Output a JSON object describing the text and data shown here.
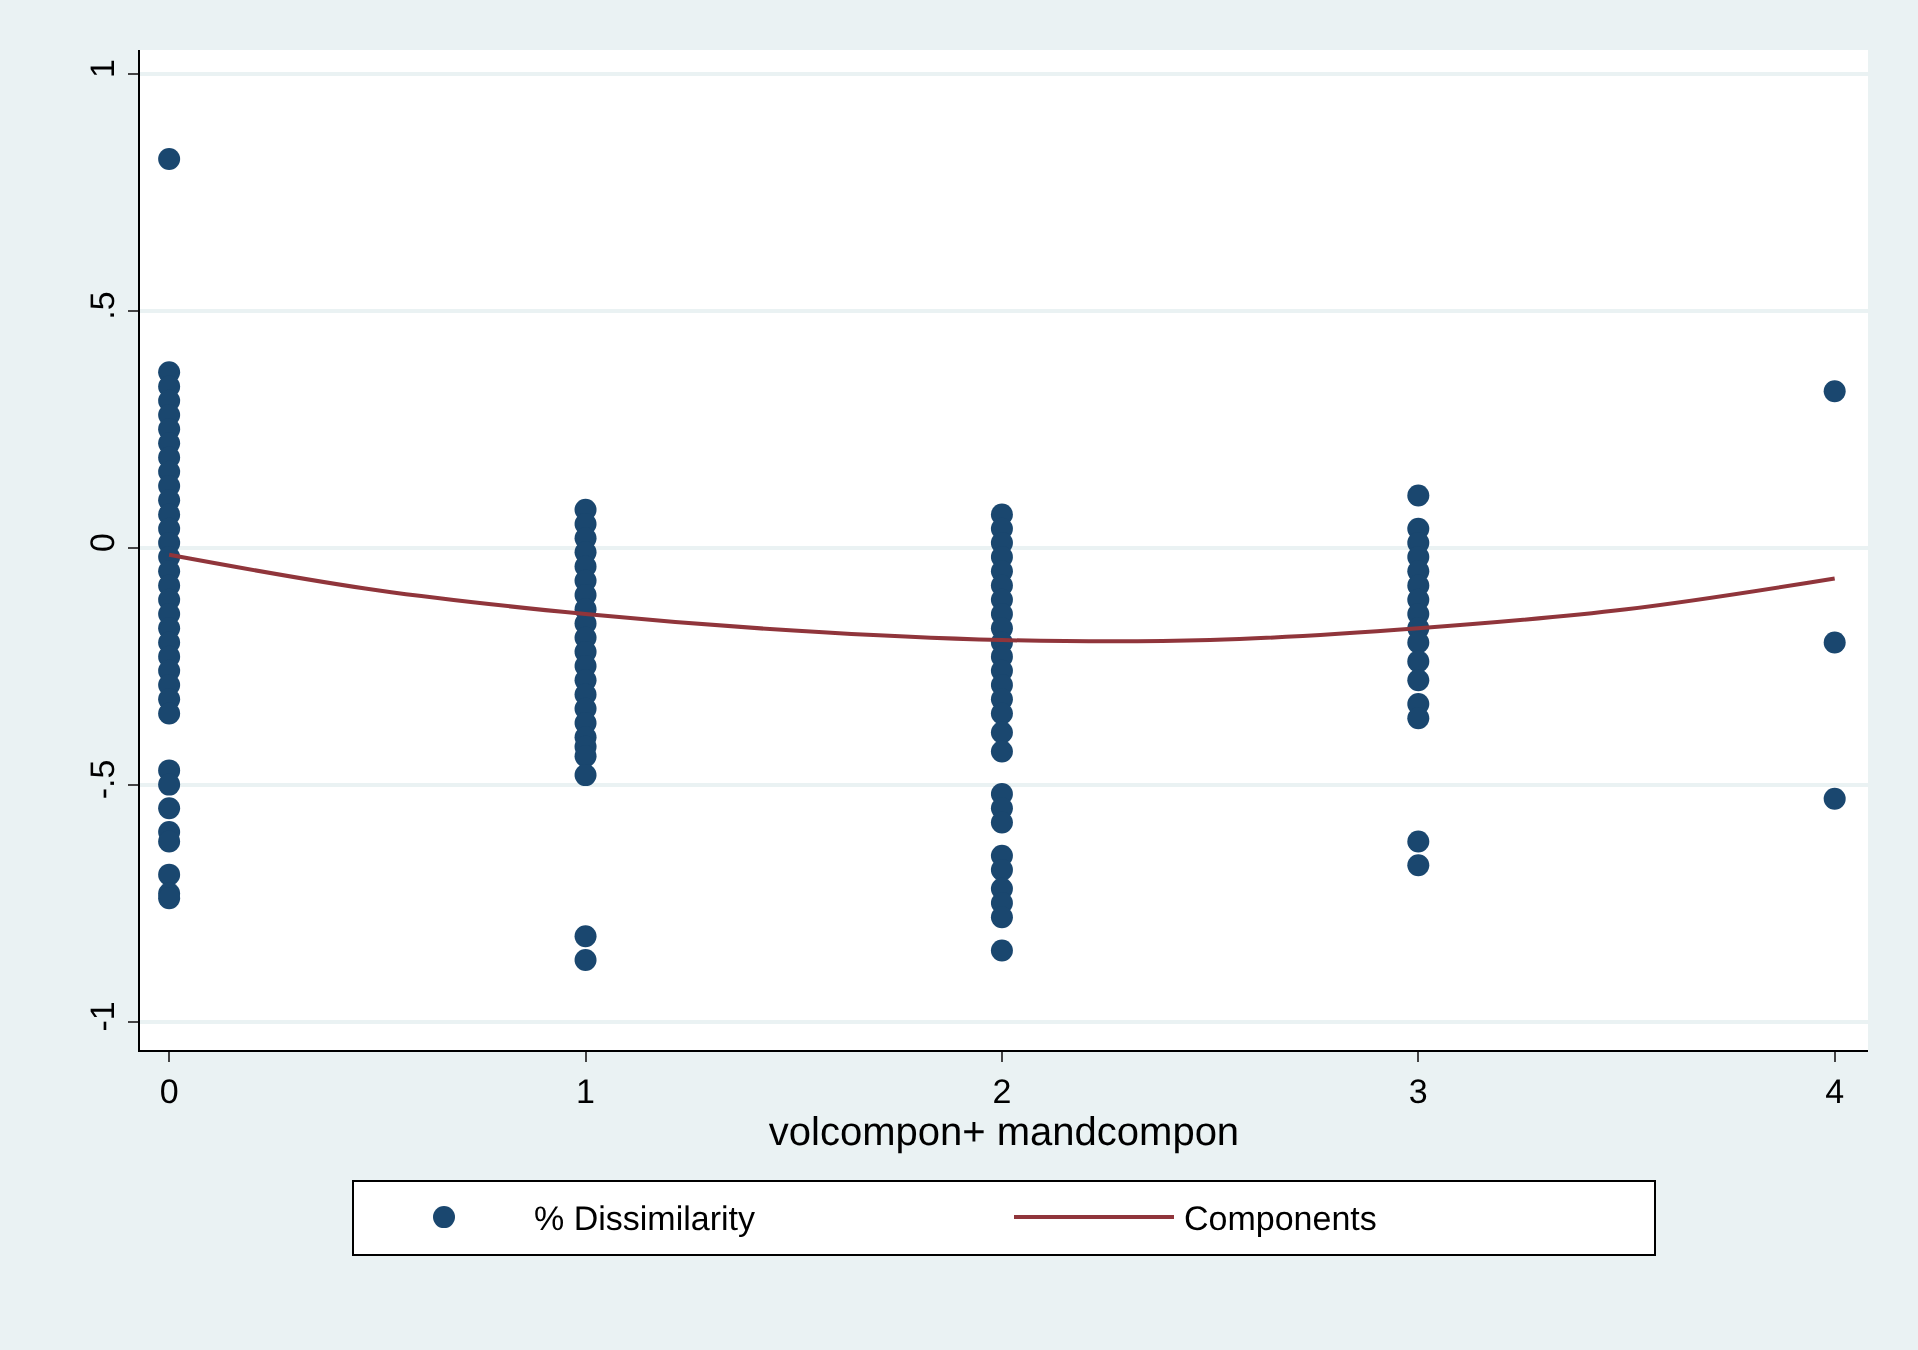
{
  "chart_data": {
    "type": "scatter",
    "xlabel": "volcompon+ mandcompon",
    "xlim": [
      -0.07,
      4.08
    ],
    "ylim": [
      -1.06,
      1.05
    ],
    "xticks": [
      0,
      1,
      2,
      3,
      4
    ],
    "yticks": [
      {
        "value": -1,
        "label": "-1"
      },
      {
        "value": -0.5,
        "label": "-.5"
      },
      {
        "value": 0,
        "label": "0"
      },
      {
        "value": 0.5,
        "label": ".5"
      },
      {
        "value": 1,
        "label": "1"
      }
    ],
    "grid": "y",
    "legend": "bottom",
    "marker": "circle",
    "series": [
      {
        "name": "% Dissimilarity",
        "color": "#1a476f",
        "x": [
          0,
          0,
          0,
          0,
          0,
          0,
          0,
          0,
          0,
          0,
          0,
          0,
          0,
          0,
          0,
          0,
          0,
          0,
          0,
          0,
          0,
          0,
          0,
          0,
          0,
          0,
          0,
          0,
          0,
          0,
          0,
          0,
          0,
          0,
          1,
          1,
          1,
          1,
          1,
          1,
          1,
          1,
          1,
          1,
          1,
          1,
          1,
          1,
          1,
          1,
          1,
          1,
          1,
          1,
          1,
          1,
          2,
          2,
          2,
          2,
          2,
          2,
          2,
          2,
          2,
          2,
          2,
          2,
          2,
          2,
          2,
          2,
          2,
          2,
          2,
          2,
          2,
          2,
          2,
          2,
          2,
          2,
          3,
          3,
          3,
          3,
          3,
          3,
          3,
          3,
          3,
          3,
          3,
          3,
          3,
          3,
          3,
          3,
          4,
          4,
          4
        ],
        "values": [
          0.82,
          0.37,
          0.34,
          0.31,
          0.28,
          0.25,
          0.22,
          0.19,
          0.16,
          0.13,
          0.1,
          0.07,
          0.04,
          0.01,
          -0.02,
          -0.05,
          -0.08,
          -0.11,
          -0.14,
          -0.17,
          -0.2,
          -0.23,
          -0.26,
          -0.29,
          -0.32,
          -0.35,
          -0.47,
          -0.5,
          -0.55,
          -0.6,
          -0.62,
          -0.69,
          -0.73,
          -0.74,
          0.08,
          0.05,
          0.02,
          -0.01,
          -0.04,
          -0.07,
          -0.1,
          -0.13,
          -0.16,
          -0.19,
          -0.22,
          -0.25,
          -0.28,
          -0.31,
          -0.34,
          -0.37,
          -0.4,
          -0.42,
          -0.44,
          -0.48,
          -0.82,
          -0.87,
          0.07,
          0.04,
          0.01,
          -0.02,
          -0.05,
          -0.08,
          -0.11,
          -0.14,
          -0.17,
          -0.2,
          -0.23,
          -0.26,
          -0.29,
          -0.32,
          -0.35,
          -0.39,
          -0.43,
          -0.52,
          -0.55,
          -0.58,
          -0.65,
          -0.68,
          -0.72,
          -0.75,
          -0.78,
          -0.85,
          0.11,
          0.04,
          0.01,
          -0.02,
          -0.05,
          -0.08,
          -0.11,
          -0.14,
          -0.17,
          -0.2,
          -0.24,
          -0.28,
          -0.33,
          -0.36,
          -0.62,
          -0.67,
          0.33,
          -0.2,
          -0.53
        ]
      },
      {
        "name": "Components",
        "color": "#90353b",
        "type": "line",
        "marker": "none",
        "x": [
          0,
          0.5,
          1,
          1.5,
          2,
          2.5,
          3,
          3.5,
          4
        ],
        "values": [
          -0.015,
          -0.09,
          -0.14,
          -0.175,
          -0.195,
          -0.195,
          -0.17,
          -0.13,
          -0.065
        ]
      }
    ]
  }
}
